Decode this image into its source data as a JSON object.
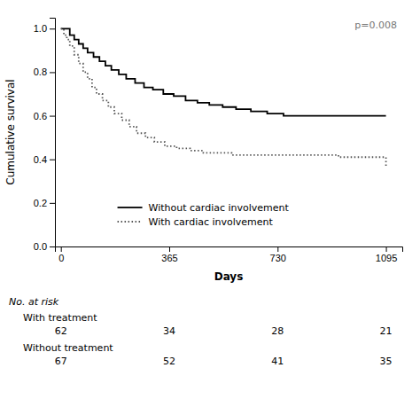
{
  "chart_data": {
    "type": "step",
    "xlabel": "Days",
    "ylabel": "Cumulative survival",
    "xlim": [
      -20,
      1150
    ],
    "xticks": [
      0,
      365,
      730,
      1095
    ],
    "ylim": [
      0.0,
      1.05
    ],
    "yticks": [
      {
        "value": 0.0,
        "label": "0.0"
      },
      0.2,
      0.4,
      0.6,
      0.8,
      {
        "value": 1.0,
        "label": "1.0"
      }
    ],
    "legend": "lower left",
    "annotations": [
      {
        "text": "p=0.008"
      }
    ],
    "series": [
      {
        "name": "Without cardiac involvement",
        "color": "#000000",
        "line_style": "solid",
        "x": [
          0,
          20,
          30,
          45,
          60,
          75,
          90,
          110,
          130,
          150,
          170,
          195,
          220,
          250,
          280,
          310,
          345,
          380,
          420,
          460,
          500,
          545,
          590,
          640,
          695,
          750,
          810,
          870,
          940,
          1010,
          1095
        ],
        "values": [
          1.0,
          1.0,
          0.97,
          0.95,
          0.93,
          0.91,
          0.89,
          0.87,
          0.85,
          0.83,
          0.81,
          0.79,
          0.77,
          0.75,
          0.73,
          0.72,
          0.7,
          0.69,
          0.67,
          0.66,
          0.65,
          0.64,
          0.63,
          0.62,
          0.61,
          0.6,
          0.6,
          0.6,
          0.6,
          0.6,
          0.6
        ]
      },
      {
        "name": "With cardiac involvement",
        "color": "#555555",
        "line_style": "dotted",
        "x": [
          0,
          10,
          20,
          30,
          45,
          60,
          75,
          90,
          105,
          120,
          140,
          160,
          180,
          205,
          230,
          255,
          285,
          315,
          350,
          390,
          435,
          480,
          525,
          575,
          625,
          680,
          740,
          800,
          865,
          935,
          1010,
          1095
        ],
        "values": [
          1.0,
          0.97,
          0.95,
          0.92,
          0.88,
          0.84,
          0.8,
          0.77,
          0.73,
          0.7,
          0.67,
          0.64,
          0.61,
          0.58,
          0.55,
          0.52,
          0.5,
          0.48,
          0.46,
          0.45,
          0.44,
          0.43,
          0.43,
          0.42,
          0.42,
          0.42,
          0.42,
          0.42,
          0.42,
          0.41,
          0.41,
          0.37
        ]
      }
    ],
    "risk_table": {
      "title": "No. at risk",
      "x": [
        0,
        365,
        730,
        1095
      ],
      "rows": [
        {
          "label": "With treatment",
          "values": [
            62,
            34,
            28,
            21
          ]
        },
        {
          "label": "Without treatment",
          "values": [
            67,
            52,
            41,
            35
          ]
        }
      ]
    }
  }
}
